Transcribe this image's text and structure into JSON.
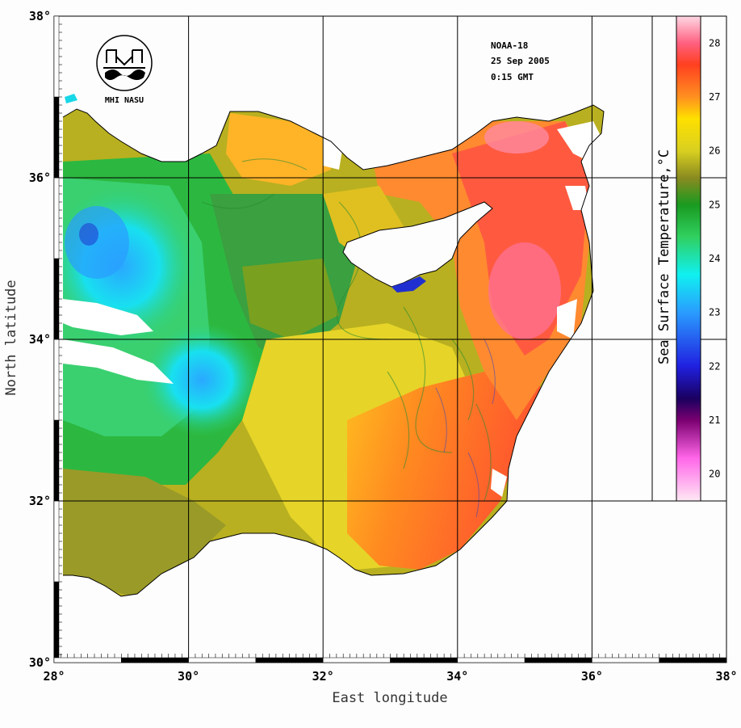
{
  "map": {
    "satellite": "NOAA-18",
    "date": "25 Sep 2005",
    "time": "0:15 GMT",
    "logo_text": "MHI NASU",
    "x_axis_title": "East longitude",
    "y_axis_title": "North latitude",
    "lon_ticks": [
      "28°",
      "30°",
      "32°",
      "34°",
      "36°",
      "38°"
    ],
    "lat_ticks": [
      "38°",
      "36°",
      "34°",
      "32°",
      "30°"
    ],
    "lon_range": [
      28,
      38
    ],
    "lat_range": [
      30,
      38
    ],
    "colorbar": {
      "title": "Sea Surface Temperature,°C",
      "labels": [
        "28",
        "27",
        "26",
        "25",
        "24",
        "23",
        "22",
        "21",
        "20"
      ],
      "range": [
        19.5,
        28.5
      ],
      "stops": [
        {
          "t": 19.5,
          "c": "#ffe8f4"
        },
        {
          "t": 20.3,
          "c": "#ff66e8"
        },
        {
          "t": 21.0,
          "c": "#7a0070"
        },
        {
          "t": 21.4,
          "c": "#1a0060"
        },
        {
          "t": 22.0,
          "c": "#2020e0"
        },
        {
          "t": 23.0,
          "c": "#2a9cff"
        },
        {
          "t": 23.7,
          "c": "#10f0f0"
        },
        {
          "t": 24.4,
          "c": "#30d060"
        },
        {
          "t": 25.0,
          "c": "#1a9a20"
        },
        {
          "t": 25.5,
          "c": "#8a8a20"
        },
        {
          "t": 26.0,
          "c": "#d8d020"
        },
        {
          "t": 26.6,
          "c": "#ffe000"
        },
        {
          "t": 27.0,
          "c": "#ff9020"
        },
        {
          "t": 27.6,
          "c": "#ff4020"
        },
        {
          "t": 28.0,
          "c": "#ff6080"
        },
        {
          "t": 28.5,
          "c": "#ffd8e4"
        }
      ]
    },
    "colors": {
      "land": "#fdfdfd",
      "grid": "#000000",
      "cloud": "#ffffff"
    }
  }
}
